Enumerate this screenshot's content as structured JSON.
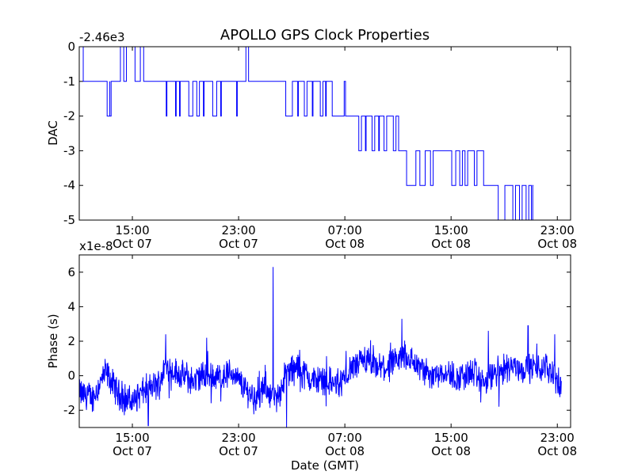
{
  "figure": {
    "title": "APOLLO GPS Clock Properties",
    "series_color": "#0000ff"
  },
  "chart_data": [
    {
      "type": "line",
      "title": "APOLLO GPS Clock Properties",
      "ylabel": "DAC",
      "xlabel": "",
      "y_offset_label": "-2.46e3",
      "x_range_hours_gmt": [
        "Oct 07 11:00",
        "Oct 08 24:00"
      ],
      "ylim": [
        -5,
        0
      ],
      "x_ticks": [
        {
          "time": "15:00",
          "date": "Oct 07",
          "hour": 15
        },
        {
          "time": "23:00",
          "date": "Oct 07",
          "hour": 23
        },
        {
          "time": "07:00",
          "date": "Oct 08",
          "hour": 31
        },
        {
          "time": "15:00",
          "date": "Oct 08",
          "hour": 39
        },
        {
          "time": "23:00",
          "date": "Oct 08",
          "hour": 47
        }
      ],
      "y_ticks": [
        0,
        -1,
        -2,
        -3,
        -4,
        -5
      ],
      "segments": [
        [
          11.0,
          0
        ],
        [
          11.3,
          -1
        ],
        [
          13.0,
          -1
        ],
        [
          13.1,
          -2
        ],
        [
          13.3,
          -1
        ],
        [
          13.3,
          -2
        ],
        [
          13.4,
          -1
        ],
        [
          14.0,
          -1
        ],
        [
          14.1,
          0
        ],
        [
          14.3,
          0
        ],
        [
          14.35,
          -1
        ],
        [
          14.5,
          -1
        ],
        [
          14.55,
          0
        ],
        [
          15.1,
          0
        ],
        [
          15.2,
          -1
        ],
        [
          15.5,
          -1
        ],
        [
          15.6,
          0
        ],
        [
          15.8,
          0
        ],
        [
          15.85,
          -1
        ],
        [
          17.0,
          -1
        ],
        [
          17.5,
          -1
        ],
        [
          17.55,
          -2
        ],
        [
          17.6,
          -1
        ],
        [
          18.2,
          -1
        ],
        [
          18.25,
          -2
        ],
        [
          18.3,
          -1
        ],
        [
          18.5,
          -1
        ],
        [
          18.55,
          -2
        ],
        [
          18.6,
          -1
        ],
        [
          19.2,
          -1
        ],
        [
          19.25,
          -2
        ],
        [
          19.5,
          -2
        ],
        [
          19.55,
          -1
        ],
        [
          19.8,
          -1
        ],
        [
          19.85,
          -2
        ],
        [
          20.0,
          -2
        ],
        [
          20.05,
          -1
        ],
        [
          20.3,
          -1
        ],
        [
          20.35,
          -2
        ],
        [
          20.4,
          -1
        ],
        [
          21.0,
          -1
        ],
        [
          21.05,
          -2
        ],
        [
          21.3,
          -2
        ],
        [
          21.35,
          -1
        ],
        [
          21.6,
          -1
        ],
        [
          21.65,
          -2
        ],
        [
          21.7,
          -1
        ],
        [
          22.8,
          -1
        ],
        [
          22.85,
          -2
        ],
        [
          22.9,
          -1
        ],
        [
          23.5,
          -1
        ],
        [
          23.55,
          0
        ],
        [
          23.7,
          0
        ],
        [
          23.75,
          -1
        ],
        [
          26.5,
          -1
        ],
        [
          26.55,
          -2
        ],
        [
          27.0,
          -2
        ],
        [
          27.05,
          -1
        ],
        [
          27.4,
          -1
        ],
        [
          27.45,
          -2
        ],
        [
          27.5,
          -1
        ],
        [
          27.9,
          -1
        ],
        [
          27.95,
          -2
        ],
        [
          28.1,
          -2
        ],
        [
          28.15,
          -1
        ],
        [
          28.5,
          -1
        ],
        [
          28.55,
          -2
        ],
        [
          28.6,
          -1
        ],
        [
          29.1,
          -1
        ],
        [
          29.15,
          -2
        ],
        [
          29.3,
          -2
        ],
        [
          29.35,
          -1
        ],
        [
          29.5,
          -1
        ],
        [
          29.55,
          -2
        ],
        [
          29.6,
          -1
        ],
        [
          30.0,
          -1
        ],
        [
          30.05,
          -2
        ],
        [
          30.9,
          -2
        ],
        [
          30.95,
          -1
        ],
        [
          31.0,
          -1
        ],
        [
          31.05,
          -2
        ],
        [
          32.0,
          -2
        ],
        [
          32.05,
          -3
        ],
        [
          32.2,
          -3
        ],
        [
          32.25,
          -2
        ],
        [
          32.5,
          -2
        ],
        [
          32.55,
          -3
        ],
        [
          32.6,
          -2
        ],
        [
          33.0,
          -2
        ],
        [
          33.05,
          -3
        ],
        [
          33.2,
          -3
        ],
        [
          33.25,
          -2
        ],
        [
          33.5,
          -2
        ],
        [
          33.55,
          -3
        ],
        [
          33.6,
          -2
        ],
        [
          33.9,
          -2
        ],
        [
          33.95,
          -3
        ],
        [
          34.1,
          -3
        ],
        [
          34.15,
          -2
        ],
        [
          34.6,
          -2
        ],
        [
          34.65,
          -3
        ],
        [
          34.8,
          -3
        ],
        [
          34.85,
          -2
        ],
        [
          35.0,
          -2
        ],
        [
          35.05,
          -3
        ],
        [
          35.6,
          -3
        ],
        [
          35.65,
          -4
        ],
        [
          36.3,
          -4
        ],
        [
          36.35,
          -3
        ],
        [
          36.6,
          -3
        ],
        [
          36.65,
          -4
        ],
        [
          37.0,
          -4
        ],
        [
          37.05,
          -3
        ],
        [
          37.4,
          -3
        ],
        [
          37.45,
          -4
        ],
        [
          37.6,
          -4
        ],
        [
          37.65,
          -3
        ],
        [
          39.0,
          -3
        ],
        [
          39.05,
          -4
        ],
        [
          39.3,
          -4
        ],
        [
          39.35,
          -3
        ],
        [
          39.6,
          -3
        ],
        [
          39.65,
          -4
        ],
        [
          39.8,
          -4
        ],
        [
          39.85,
          -3
        ],
        [
          40.0,
          -3
        ],
        [
          40.05,
          -4
        ],
        [
          40.2,
          -4
        ],
        [
          40.25,
          -3
        ],
        [
          40.7,
          -3
        ],
        [
          40.75,
          -4
        ],
        [
          40.9,
          -4
        ],
        [
          40.95,
          -3
        ],
        [
          41.4,
          -3
        ],
        [
          41.45,
          -4
        ],
        [
          42.5,
          -4
        ],
        [
          42.55,
          -5
        ],
        [
          43.0,
          -5
        ],
        [
          43.05,
          -4
        ],
        [
          43.6,
          -4
        ],
        [
          43.65,
          -5
        ],
        [
          43.8,
          -5
        ],
        [
          43.85,
          -4
        ],
        [
          44.1,
          -4
        ],
        [
          44.15,
          -5
        ],
        [
          44.3,
          -5
        ],
        [
          44.35,
          -4
        ],
        [
          44.6,
          -4
        ],
        [
          44.65,
          -5
        ],
        [
          44.8,
          -5
        ],
        [
          44.85,
          -4
        ],
        [
          45.0,
          -4
        ],
        [
          45.05,
          -5
        ],
        [
          45.1,
          -5
        ],
        [
          45.15,
          -4
        ],
        [
          45.2,
          -4
        ]
      ]
    },
    {
      "type": "line",
      "xlabel": "Date (GMT)",
      "ylabel": "Phase (s)",
      "y_offset_label": "x1e-8",
      "ylim": [
        -3,
        7
      ],
      "x_ticks": [
        {
          "time": "15:00",
          "date": "Oct 07",
          "hour": 15
        },
        {
          "time": "23:00",
          "date": "Oct 07",
          "hour": 23
        },
        {
          "time": "07:00",
          "date": "Oct 08",
          "hour": 31
        },
        {
          "time": "15:00",
          "date": "Oct 08",
          "hour": 39
        },
        {
          "time": "23:00",
          "date": "Oct 08",
          "hour": 47
        }
      ],
      "y_ticks": [
        6,
        4,
        2,
        0,
        -2
      ],
      "trend": [
        [
          11.0,
          -1.0
        ],
        [
          12.0,
          -1.3
        ],
        [
          13.0,
          0.2
        ],
        [
          14.0,
          -1.1
        ],
        [
          15.0,
          -1.5
        ],
        [
          16.0,
          -0.8
        ],
        [
          17.0,
          -0.5
        ],
        [
          17.5,
          0.6
        ],
        [
          18.5,
          0.1
        ],
        [
          19.5,
          -0.3
        ],
        [
          20.5,
          0.0
        ],
        [
          21.5,
          -0.1
        ],
        [
          22.5,
          0.2
        ],
        [
          23.5,
          -0.8
        ],
        [
          24.5,
          -1.3
        ],
        [
          25.0,
          -0.6
        ],
        [
          25.8,
          -1.5
        ],
        [
          26.6,
          0.2
        ],
        [
          27.5,
          0.5
        ],
        [
          28.5,
          -0.3
        ],
        [
          29.5,
          -0.2
        ],
        [
          30.5,
          -0.6
        ],
        [
          31.5,
          0.4
        ],
        [
          32.5,
          0.8
        ],
        [
          33.5,
          0.4
        ],
        [
          34.5,
          0.5
        ],
        [
          35.5,
          1.2
        ],
        [
          36.0,
          0.9
        ],
        [
          36.5,
          0.5
        ],
        [
          37.5,
          0.0
        ],
        [
          38.5,
          0.3
        ],
        [
          39.5,
          -0.2
        ],
        [
          40.5,
          0.2
        ],
        [
          41.5,
          -0.4
        ],
        [
          42.5,
          0.2
        ],
        [
          43.5,
          0.6
        ],
        [
          44.5,
          0.4
        ],
        [
          45.5,
          0.5
        ],
        [
          46.5,
          0.4
        ],
        [
          47.3,
          -0.8
        ]
      ],
      "spikes": [
        {
          "hour": 25.6,
          "value": 6.3
        },
        {
          "hour": 26.6,
          "value": -3.0
        },
        {
          "hour": 35.3,
          "value": 3.3
        },
        {
          "hour": 17.5,
          "value": 2.4
        },
        {
          "hour": 20.6,
          "value": 2.2
        },
        {
          "hour": 41.8,
          "value": 2.6
        },
        {
          "hour": 44.8,
          "value": 2.9
        },
        {
          "hour": 46.8,
          "value": 2.4
        },
        {
          "hour": 16.2,
          "value": -2.9
        },
        {
          "hour": 42.6,
          "value": -1.8
        }
      ]
    }
  ]
}
